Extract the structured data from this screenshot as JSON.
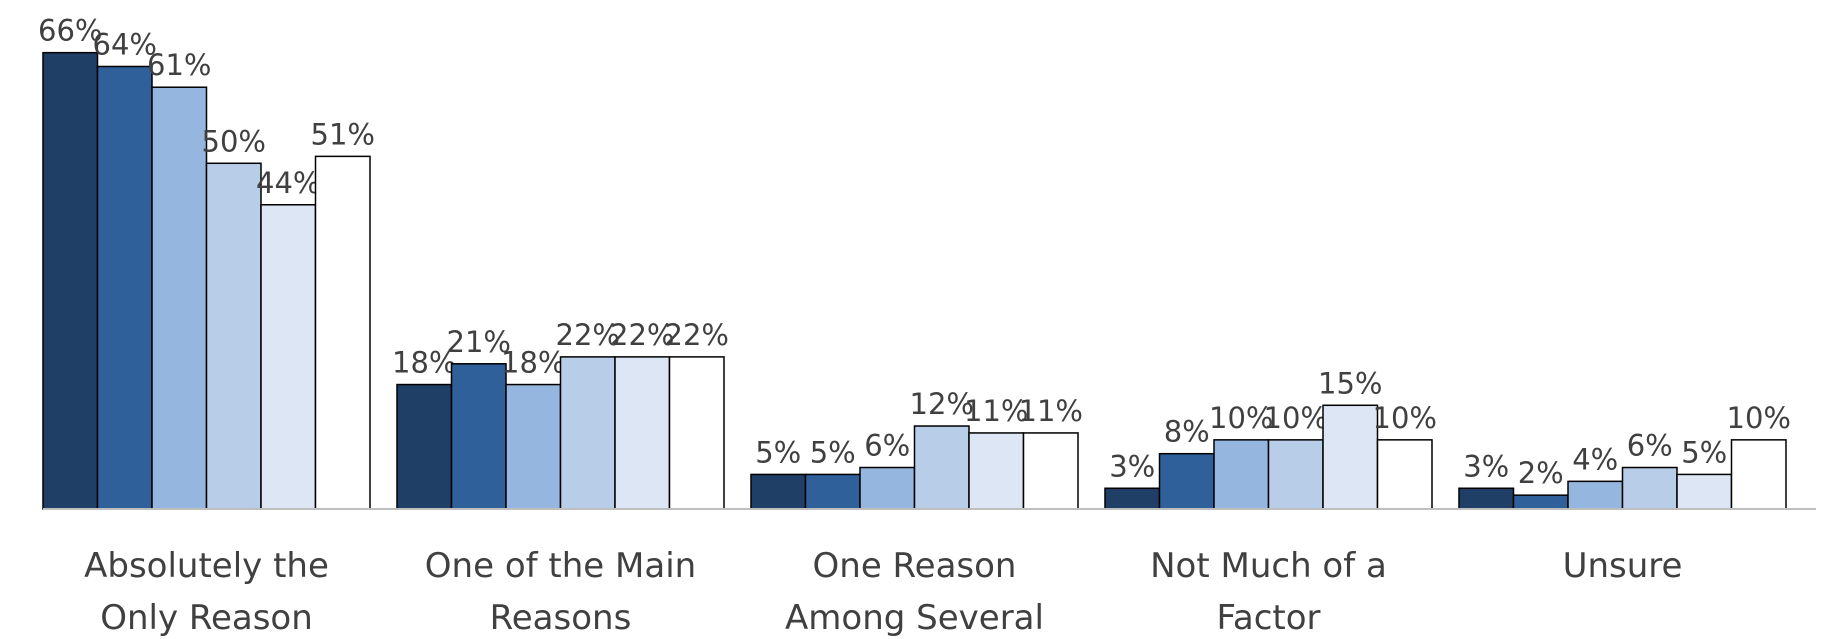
{
  "chart_data": {
    "type": "bar",
    "categories": [
      "Absolutely the Only Reason",
      "One of the Main Reasons",
      "One Reason Among Several",
      "Not Much of a Factor",
      "Unsure"
    ],
    "series": [
      {
        "color": "#203f66",
        "values": [
          66,
          18,
          5,
          3,
          3
        ],
        "value_labels": [
          "66%",
          "18%",
          "5%",
          "3%",
          "3%"
        ]
      },
      {
        "color": "#2f6099",
        "values": [
          64,
          21,
          5,
          8,
          2
        ],
        "value_labels": [
          "64%",
          "21%",
          "5%",
          "8%",
          "2%"
        ]
      },
      {
        "color": "#95b6df",
        "values": [
          61,
          18,
          6,
          10,
          4
        ],
        "value_labels": [
          "61%",
          "18%",
          "6%",
          "10%",
          "4%"
        ]
      },
      {
        "color": "#b8cde8",
        "values": [
          50,
          22,
          12,
          10,
          6
        ],
        "value_labels": [
          "50%",
          "22%",
          "12%",
          "10%",
          "6%"
        ]
      },
      {
        "color": "#dce6f4",
        "values": [
          44,
          22,
          11,
          15,
          5
        ],
        "value_labels": [
          "44%",
          "22%",
          "11%",
          "15%",
          "5%"
        ]
      },
      {
        "color": "#ffffff",
        "values": [
          51,
          22,
          11,
          10,
          10
        ],
        "value_labels": [
          "51%",
          "22%",
          "11%",
          "10%",
          "10%"
        ]
      }
    ],
    "ylim": [
      0,
      70
    ]
  }
}
